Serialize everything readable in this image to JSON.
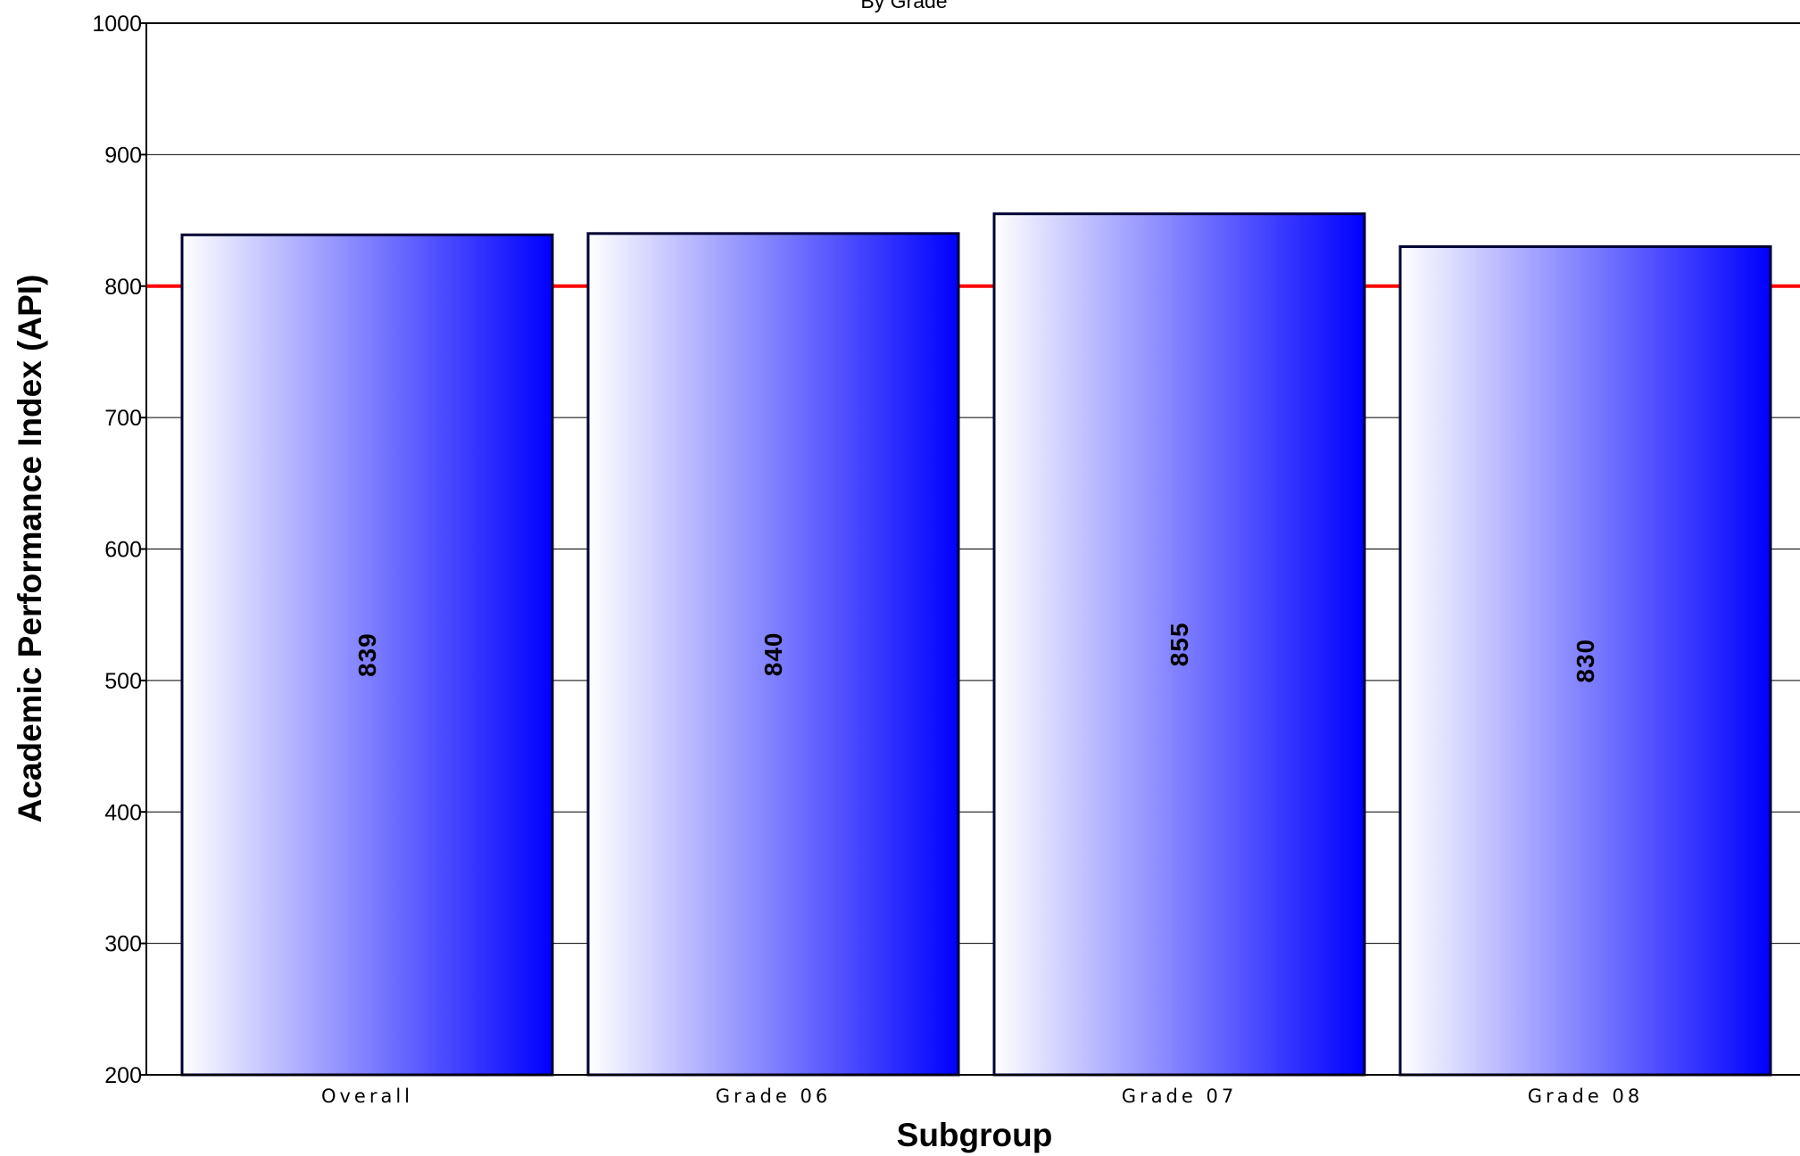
{
  "chart_data": {
    "type": "bar",
    "subtitle": "By Grade",
    "xlabel": "Subgroup",
    "ylabel": "Academic Performance Index (API)",
    "categories": [
      "Overall",
      "Grade 06",
      "Grade 07",
      "Grade 08"
    ],
    "values": [
      839,
      840,
      855,
      830
    ],
    "ylim": [
      200,
      1000
    ],
    "yticks": [
      200,
      300,
      400,
      500,
      600,
      700,
      800,
      900,
      1000
    ],
    "reference_line": {
      "value": 800,
      "color": "#ff0000"
    },
    "grid": true,
    "legend": "none",
    "colors": {
      "bar_gradient_start": "#ffffff",
      "bar_gradient_end": "#0000ff",
      "bar_outline": "#000033"
    }
  }
}
